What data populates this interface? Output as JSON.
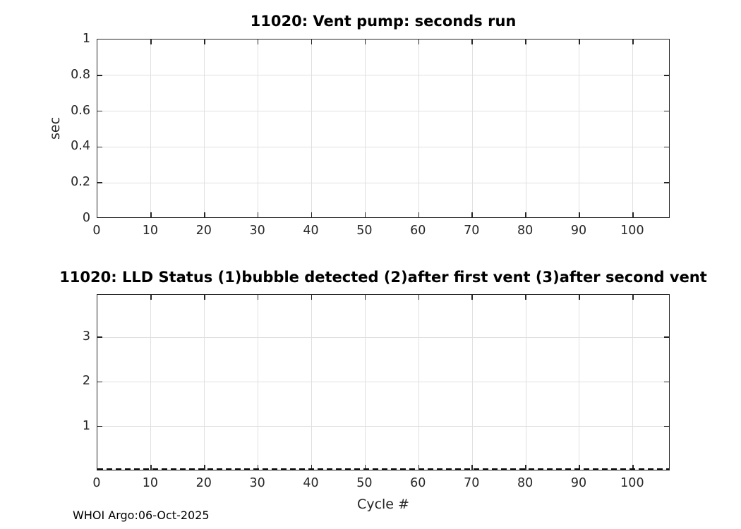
{
  "figure": {
    "footer": "WHOI Argo:06-Oct-2025"
  },
  "colors": {
    "background": "#ffffff",
    "axis": "#262626",
    "grid": "#e0e0e0",
    "title": "#000000",
    "zero_line": "#0a0a0a"
  },
  "chart_data": [
    {
      "type": "line",
      "title": "11020: Vent pump: seconds run",
      "xlabel": "",
      "ylabel": "sec",
      "xlim": [
        0,
        107
      ],
      "ylim": [
        0,
        1
      ],
      "xticks": [
        0,
        10,
        20,
        30,
        40,
        50,
        60,
        70,
        80,
        90,
        100
      ],
      "yticks": [
        0,
        0.2,
        0.4,
        0.6,
        0.8,
        1
      ],
      "grid": true,
      "legend": "none",
      "series": [],
      "zero_dashed_line": false
    },
    {
      "type": "line",
      "title": "11020: LLD Status   (1)bubble detected   (2)after first vent  (3)after second vent",
      "xlabel": "Cycle #",
      "ylabel": "",
      "xlim": [
        0,
        107
      ],
      "ylim": [
        0,
        3.95
      ],
      "xticks": [
        0,
        10,
        20,
        30,
        40,
        50,
        60,
        70,
        80,
        90,
        100
      ],
      "yticks": [
        1,
        2,
        3
      ],
      "grid": true,
      "legend": "none",
      "series": [],
      "zero_dashed_line": true
    }
  ]
}
